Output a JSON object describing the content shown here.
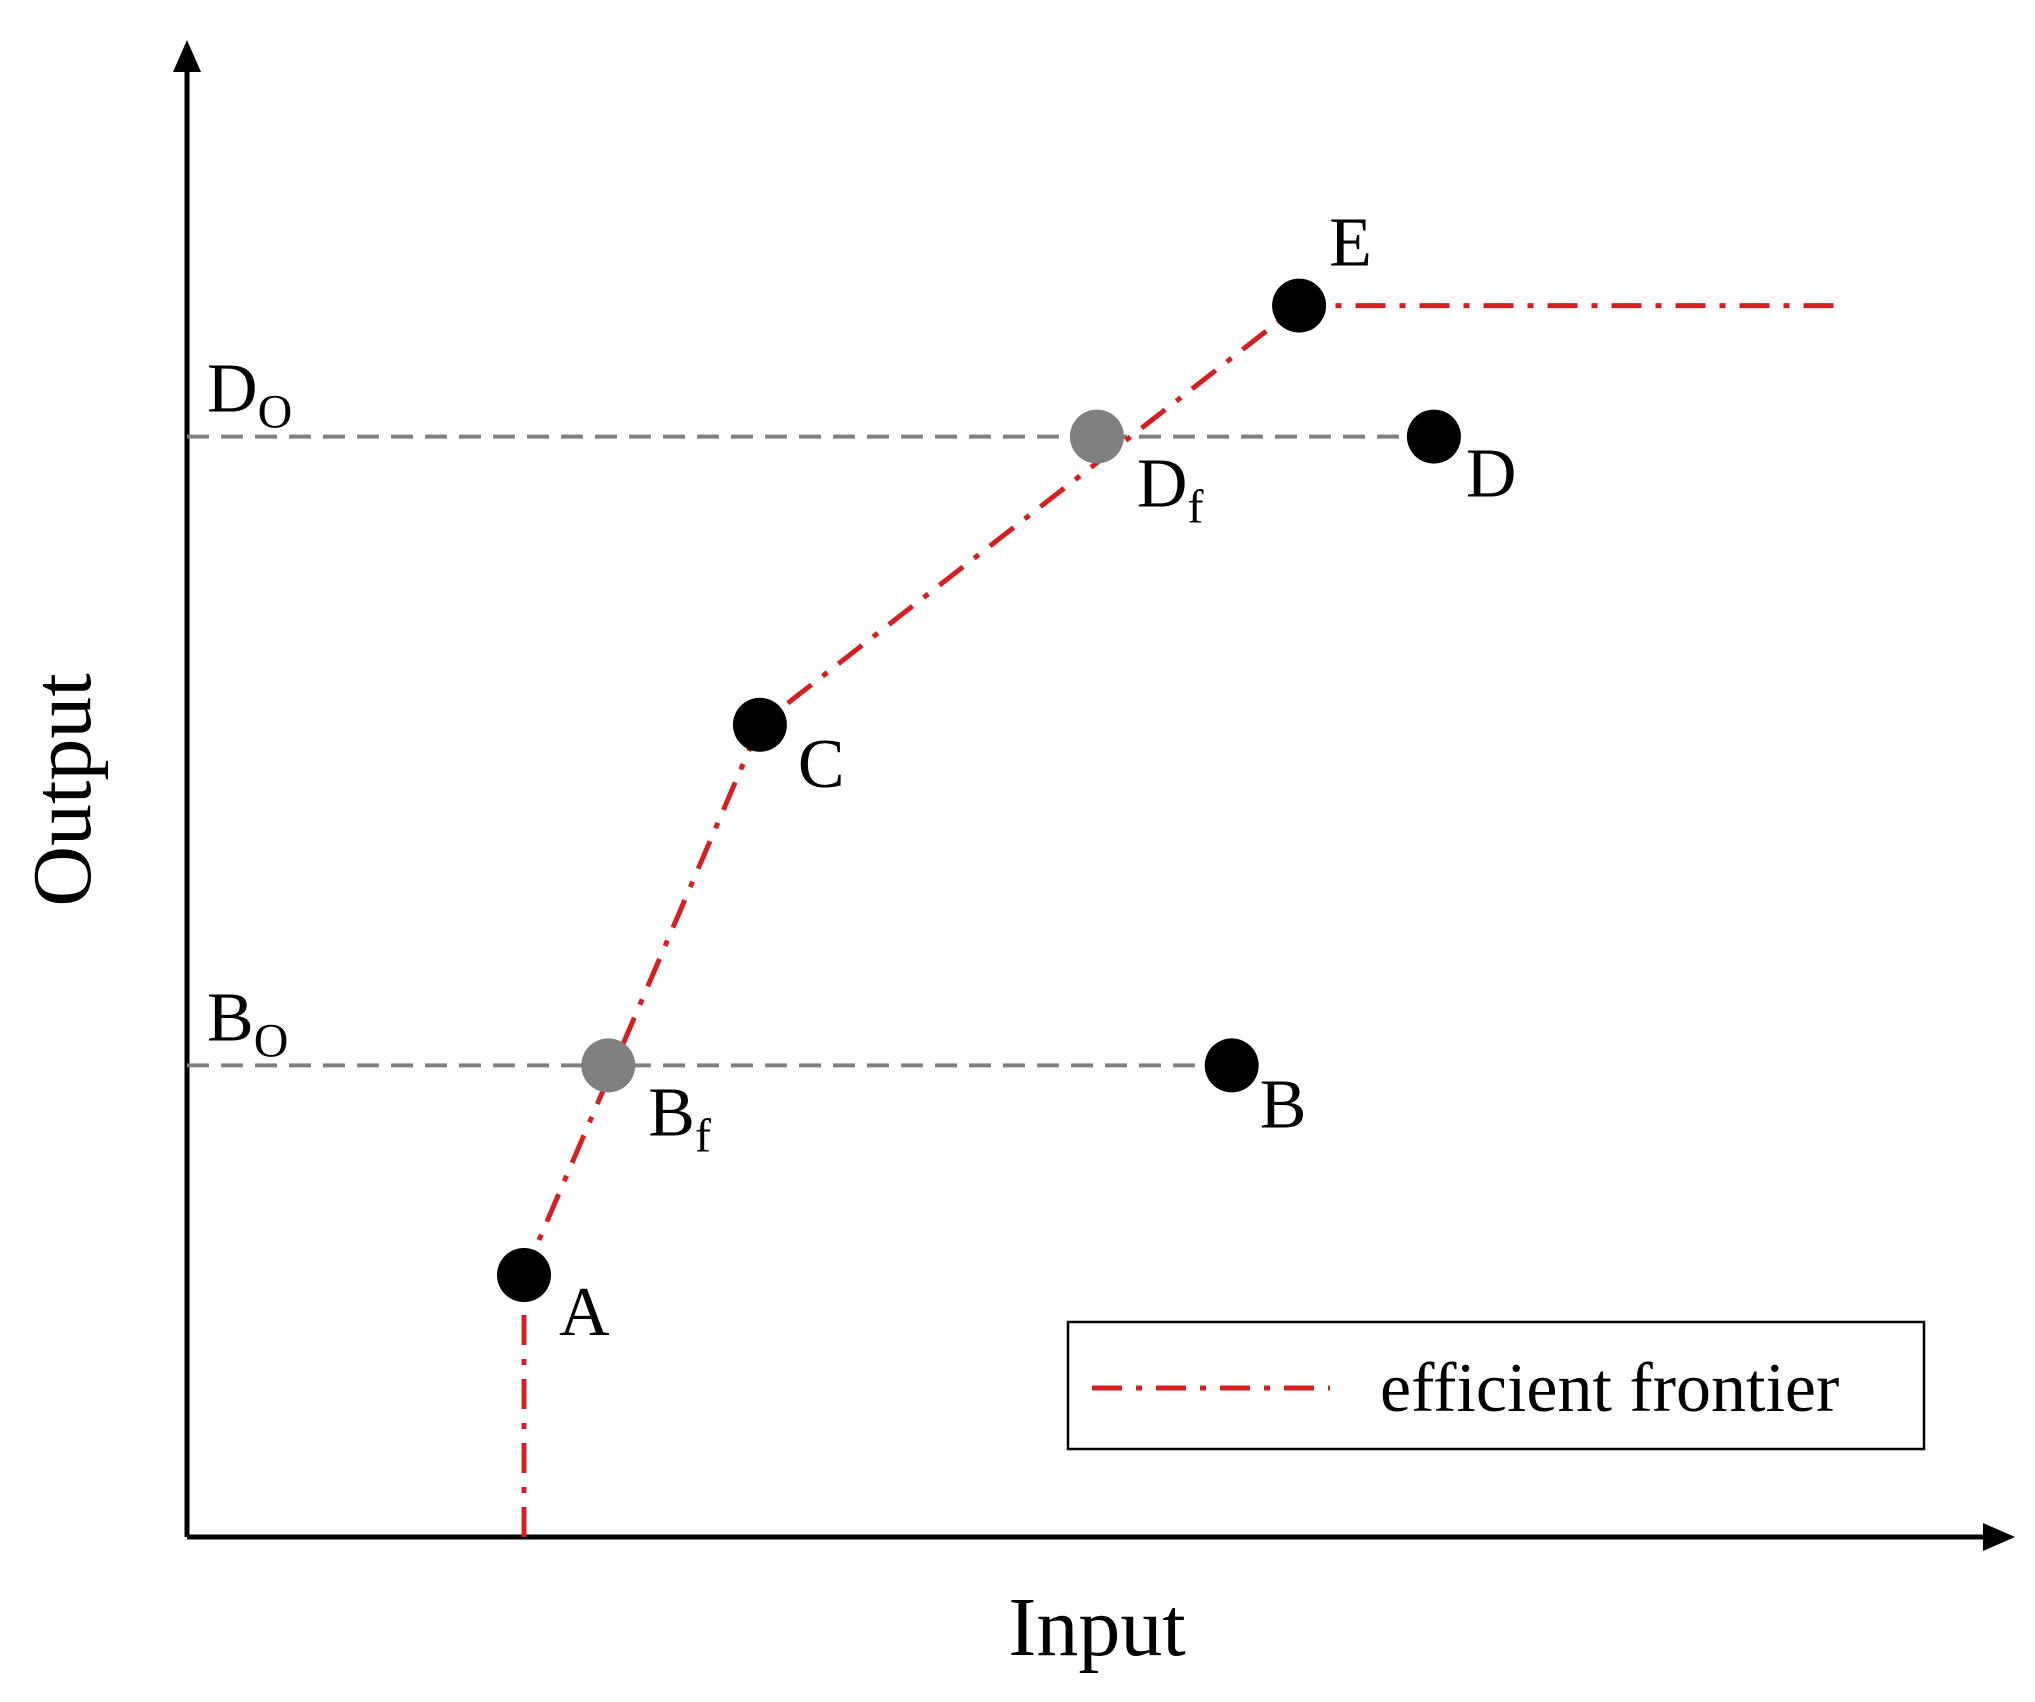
{
  "chart_data": {
    "type": "scatter",
    "xlabel": "Input",
    "ylabel": "Output",
    "colors": {
      "frontier": "#d42020",
      "projection": "#808080",
      "point": "#000000",
      "projected_point": "#808080"
    },
    "points": [
      {
        "id": "A",
        "label": "A",
        "x": 1.0,
        "y": 1.0,
        "kind": "observed"
      },
      {
        "id": "B",
        "label": "B",
        "x": 3.1,
        "y": 1.8,
        "kind": "observed"
      },
      {
        "id": "C",
        "label": "C",
        "x": 1.7,
        "y": 3.1,
        "kind": "observed"
      },
      {
        "id": "D",
        "label": "D",
        "x": 3.7,
        "y": 4.2,
        "kind": "observed"
      },
      {
        "id": "E",
        "label": "E",
        "x": 3.3,
        "y": 4.7,
        "kind": "observed"
      },
      {
        "id": "Bf",
        "label": "B",
        "sub": "f",
        "x": 1.25,
        "y": 1.8,
        "kind": "projected"
      },
      {
        "id": "Df",
        "label": "D",
        "sub": "f",
        "x": 2.7,
        "y": 4.2,
        "kind": "projected"
      }
    ],
    "axis_refs": [
      {
        "id": "Bo",
        "label": "B",
        "sub": "O",
        "y": 1.8,
        "to_point": "B"
      },
      {
        "id": "Do",
        "label": "D",
        "sub": "O",
        "y": 4.2,
        "to_point": "D"
      }
    ],
    "frontier": {
      "name": "efficient frontier",
      "path": [
        [
          1.0,
          0.0
        ],
        [
          1.0,
          1.0
        ],
        [
          1.7,
          3.1
        ],
        [
          3.3,
          4.7
        ],
        [
          4.9,
          4.7
        ]
      ]
    },
    "legend": {
      "entries": [
        "efficient frontier"
      ],
      "position": "bottom-right"
    }
  }
}
